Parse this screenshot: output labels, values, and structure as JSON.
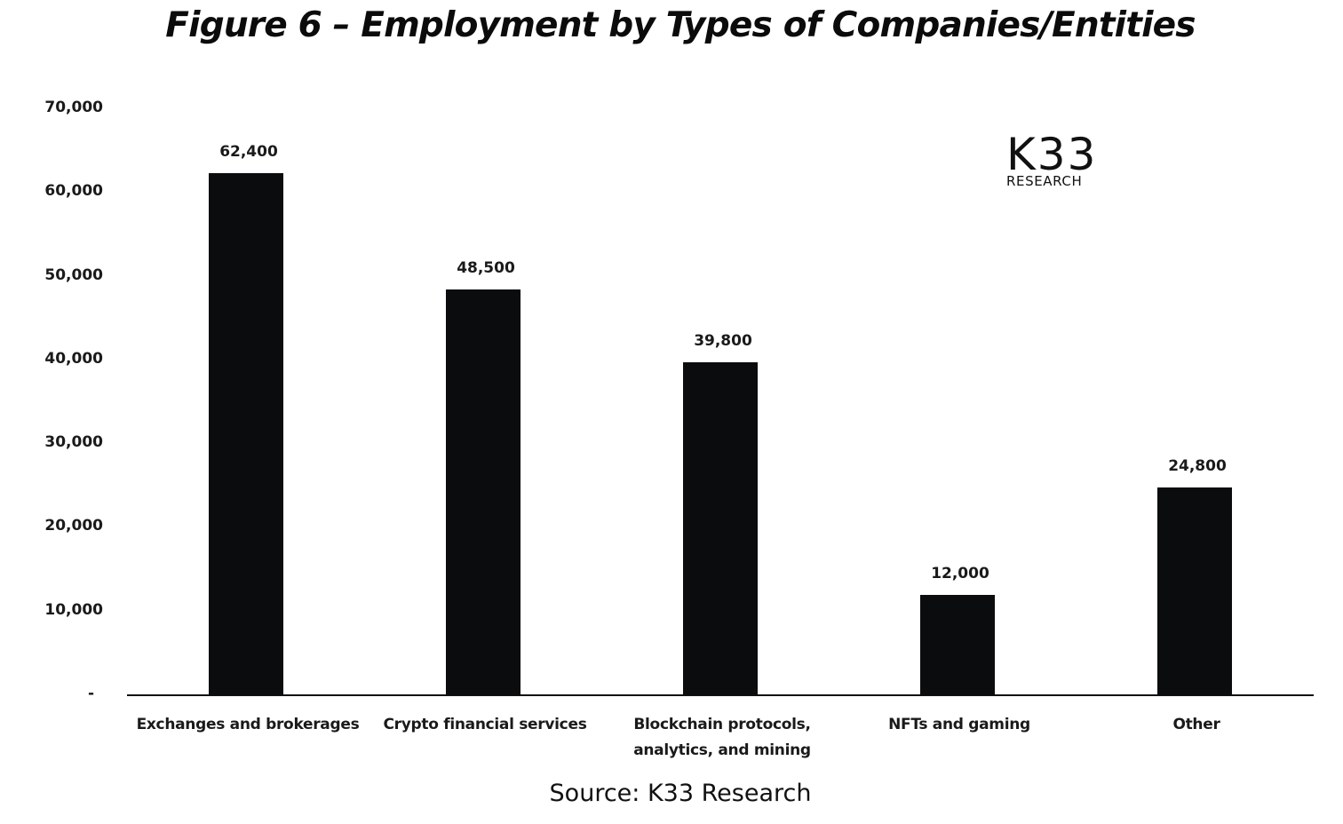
{
  "title": "Figure 6 – Employment by Types of Companies/Entities",
  "source": "Source: K33 Research",
  "logo": {
    "main": "K33",
    "sub": "RESEARCH"
  },
  "colors": {
    "bar": "#0b0c0e",
    "text": "#1a1a1a",
    "background": "#ffffff"
  },
  "y_axis": {
    "ticks": [
      "-",
      "10,000",
      "20,000",
      "30,000",
      "40,000",
      "50,000",
      "60,000",
      "70,000"
    ]
  },
  "bars": [
    {
      "category": "Exchanges and brokerages",
      "value": 62400,
      "label": "62,400"
    },
    {
      "category": "Crypto financial services",
      "value": 48500,
      "label": "48,500"
    },
    {
      "category": "Blockchain protocols, analytics, and mining",
      "value": 39800,
      "label": "39,800"
    },
    {
      "category": "NFTs and gaming",
      "value": 12000,
      "label": "12,000"
    },
    {
      "category": "Other",
      "value": 24800,
      "label": "24,800"
    }
  ],
  "chart_data": {
    "type": "bar",
    "title": "Figure 6 – Employment by Types of Companies/Entities",
    "categories": [
      "Exchanges and brokerages",
      "Crypto financial services",
      "Blockchain protocols, analytics, and mining",
      "NFTs and gaming",
      "Other"
    ],
    "values": [
      62400,
      48500,
      39800,
      12000,
      24800
    ],
    "data_labels": [
      "62,400",
      "48,500",
      "39,800",
      "12,000",
      "24,800"
    ],
    "xlabel": "",
    "ylabel": "",
    "ylim": [
      0,
      70000
    ],
    "yticks": [
      0,
      10000,
      20000,
      30000,
      40000,
      50000,
      60000,
      70000
    ],
    "ytick_labels": [
      "-",
      "10,000",
      "20,000",
      "30,000",
      "40,000",
      "50,000",
      "60,000",
      "70,000"
    ],
    "grid": false,
    "legend": null,
    "annotations": [
      "K33 RESEARCH logo (top right)",
      "Source: K33 Research"
    ],
    "bar_color": "#0b0c0e"
  }
}
